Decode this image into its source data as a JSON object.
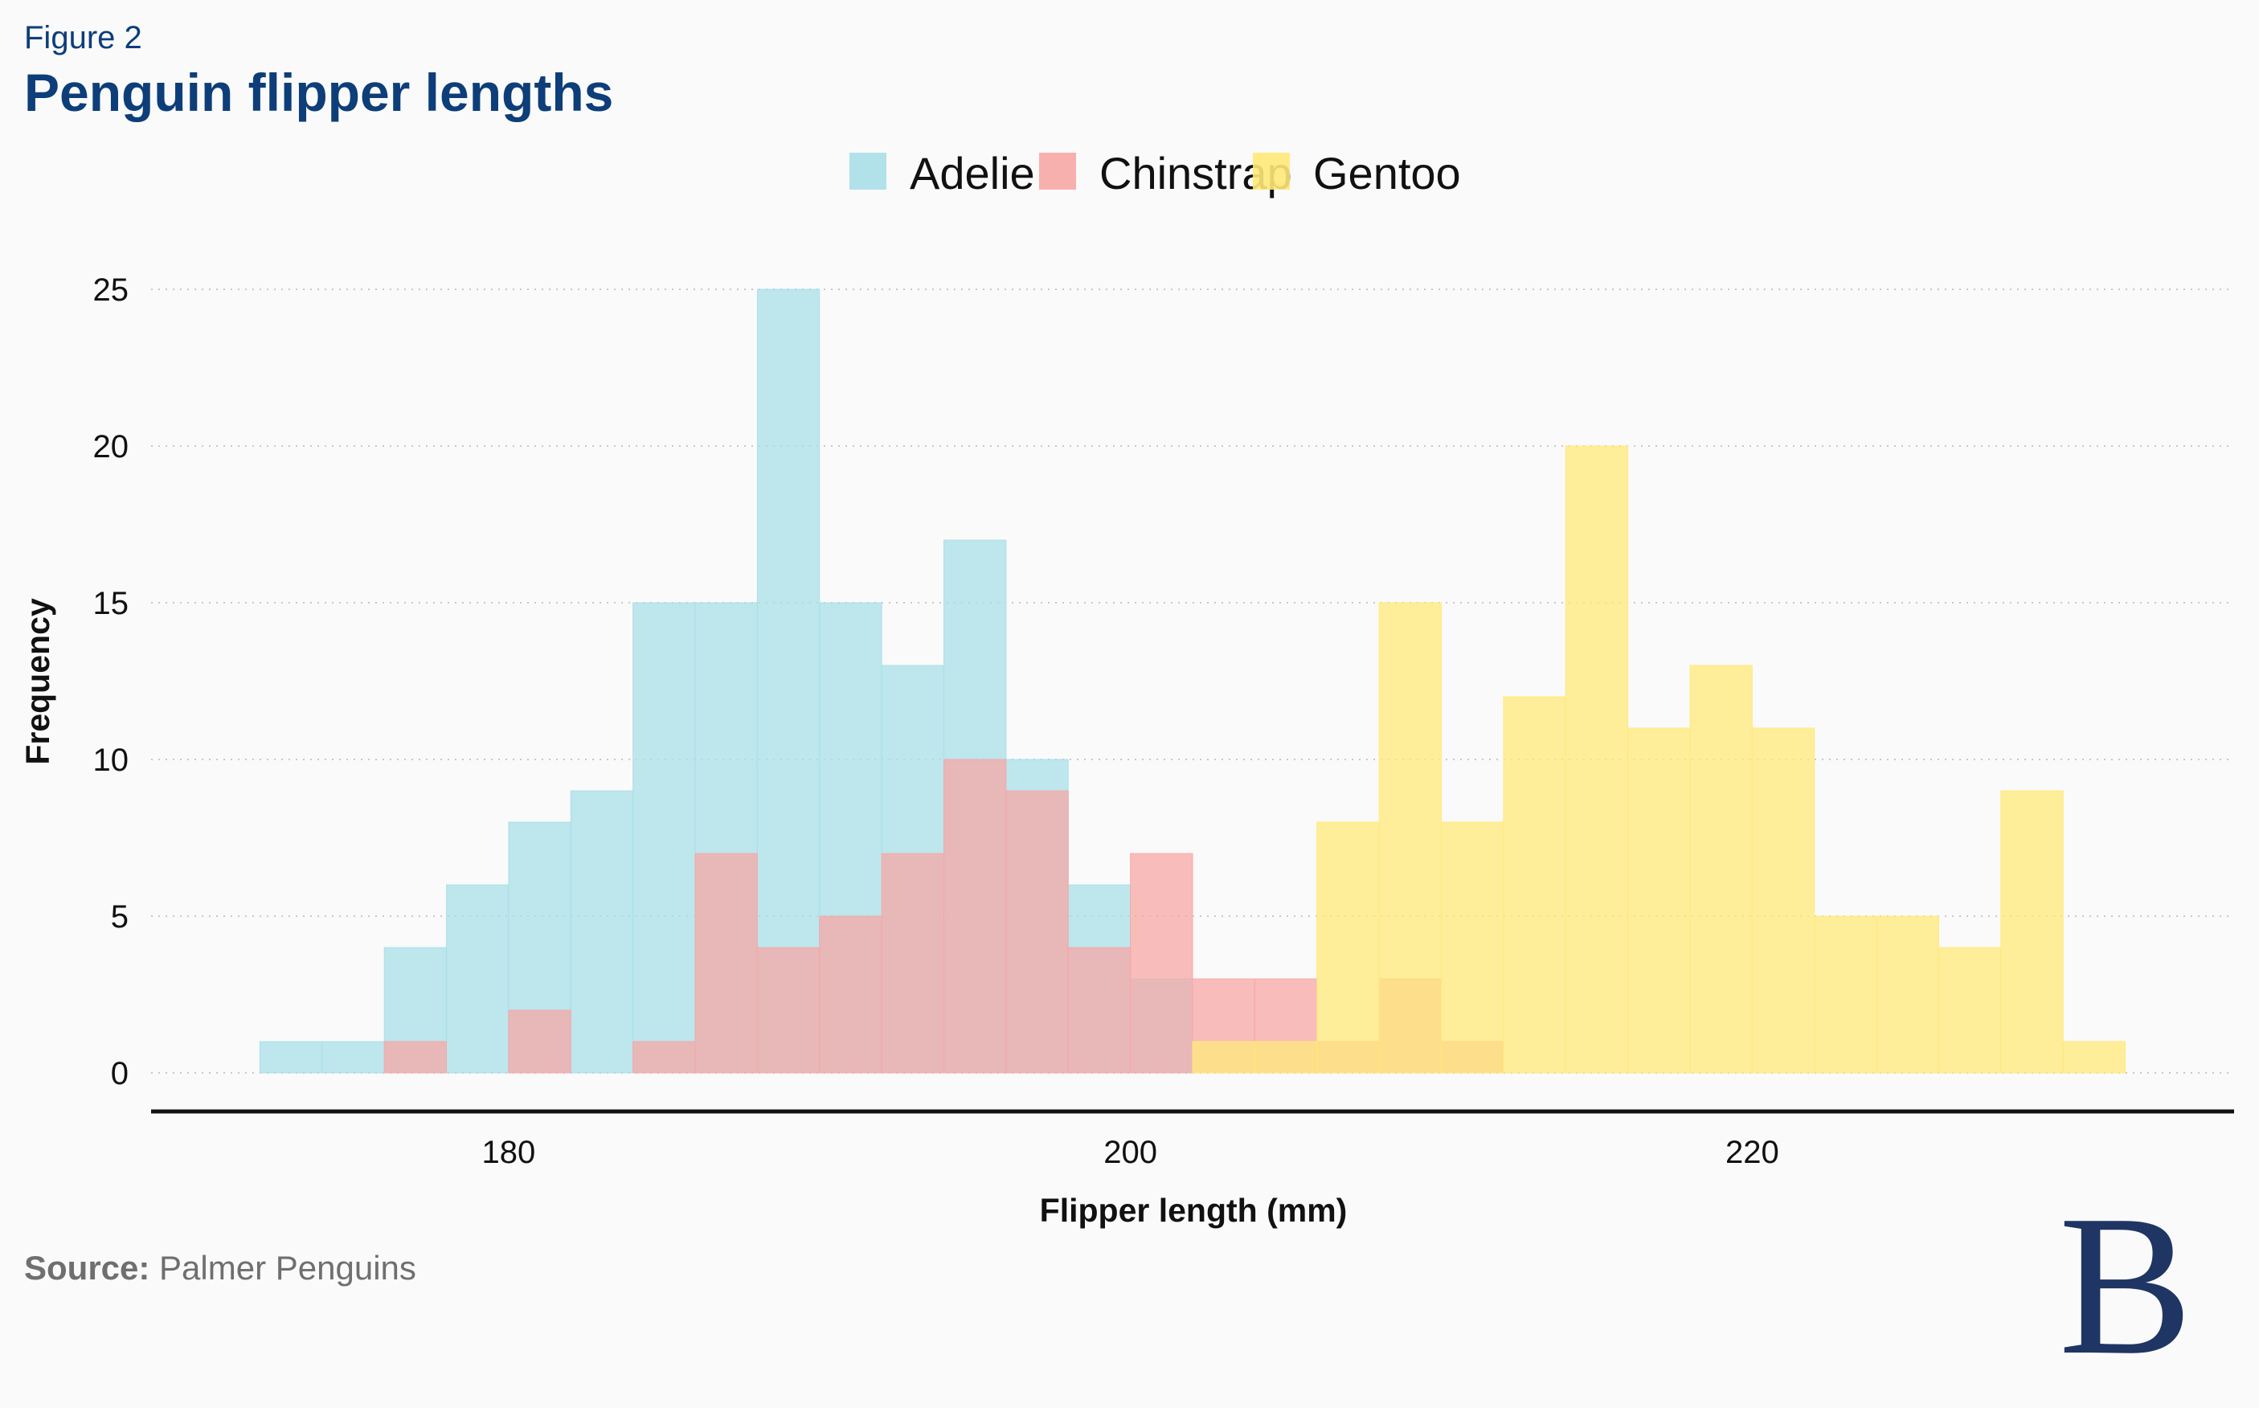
{
  "figure_label": "Figure 2",
  "title": "Penguin flipper lengths",
  "source": {
    "label": "Source:",
    "text": "Palmer Penguins"
  },
  "logo": {
    "letter": "B"
  },
  "colors": {
    "title": "#0d3e79",
    "axis": "#111111",
    "grid": "#c8c8c8",
    "source": "#6f6f6f",
    "logo": "#1f3563"
  },
  "chart_data": {
    "type": "bar",
    "subtype": "overlapping-histogram",
    "bin_width": 2,
    "xlabel": "Flipper length (mm)",
    "ylabel": "Frequency",
    "xlim": [
      168.5,
      235.5
    ],
    "ylim": [
      0,
      25
    ],
    "x_ticks": [
      180,
      200,
      220
    ],
    "y_ticks": [
      0,
      5,
      10,
      15,
      20,
      25
    ],
    "grid": "horizontal-dotted",
    "legend_position": "top-center",
    "series": [
      {
        "name": "Adelie",
        "color": "#a8dfe8",
        "bins": [
          {
            "x0": 172,
            "x1": 174,
            "count": 1
          },
          {
            "x0": 174,
            "x1": 176,
            "count": 1
          },
          {
            "x0": 176,
            "x1": 178,
            "count": 4
          },
          {
            "x0": 178,
            "x1": 180,
            "count": 6
          },
          {
            "x0": 180,
            "x1": 182,
            "count": 8
          },
          {
            "x0": 182,
            "x1": 184,
            "count": 9
          },
          {
            "x0": 184,
            "x1": 186,
            "count": 15
          },
          {
            "x0": 186,
            "x1": 188,
            "count": 15
          },
          {
            "x0": 188,
            "x1": 190,
            "count": 25
          },
          {
            "x0": 190,
            "x1": 192,
            "count": 15
          },
          {
            "x0": 192,
            "x1": 194,
            "count": 13
          },
          {
            "x0": 194,
            "x1": 196,
            "count": 17
          },
          {
            "x0": 196,
            "x1": 198,
            "count": 10
          },
          {
            "x0": 198,
            "x1": 200,
            "count": 6
          },
          {
            "x0": 200,
            "x1": 202,
            "count": 3
          }
        ]
      },
      {
        "name": "Chinstrap",
        "color": "#f7a7a6",
        "bins": [
          {
            "x0": 176,
            "x1": 178,
            "count": 1
          },
          {
            "x0": 180,
            "x1": 182,
            "count": 2
          },
          {
            "x0": 184,
            "x1": 186,
            "count": 1
          },
          {
            "x0": 186,
            "x1": 188,
            "count": 7
          },
          {
            "x0": 188,
            "x1": 190,
            "count": 4
          },
          {
            "x0": 190,
            "x1": 192,
            "count": 5
          },
          {
            "x0": 192,
            "x1": 194,
            "count": 7
          },
          {
            "x0": 194,
            "x1": 196,
            "count": 10
          },
          {
            "x0": 196,
            "x1": 198,
            "count": 9
          },
          {
            "x0": 198,
            "x1": 200,
            "count": 4
          },
          {
            "x0": 200,
            "x1": 202,
            "count": 7
          },
          {
            "x0": 202,
            "x1": 204,
            "count": 3
          },
          {
            "x0": 204,
            "x1": 206,
            "count": 3
          },
          {
            "x0": 206,
            "x1": 208,
            "count": 1
          },
          {
            "x0": 208,
            "x1": 210,
            "count": 3
          },
          {
            "x0": 210,
            "x1": 212,
            "count": 1
          }
        ]
      },
      {
        "name": "Gentoo",
        "color": "#ffe979",
        "bins": [
          {
            "x0": 202,
            "x1": 204,
            "count": 1
          },
          {
            "x0": 204,
            "x1": 206,
            "count": 1
          },
          {
            "x0": 206,
            "x1": 208,
            "count": 8
          },
          {
            "x0": 208,
            "x1": 210,
            "count": 15
          },
          {
            "x0": 210,
            "x1": 212,
            "count": 8
          },
          {
            "x0": 212,
            "x1": 214,
            "count": 12
          },
          {
            "x0": 214,
            "x1": 216,
            "count": 20
          },
          {
            "x0": 216,
            "x1": 218,
            "count": 11
          },
          {
            "x0": 218,
            "x1": 220,
            "count": 13
          },
          {
            "x0": 220,
            "x1": 222,
            "count": 11
          },
          {
            "x0": 222,
            "x1": 224,
            "count": 5
          },
          {
            "x0": 224,
            "x1": 226,
            "count": 5
          },
          {
            "x0": 226,
            "x1": 228,
            "count": 4
          },
          {
            "x0": 228,
            "x1": 230,
            "count": 9
          },
          {
            "x0": 230,
            "x1": 232,
            "count": 1
          }
        ]
      }
    ]
  }
}
